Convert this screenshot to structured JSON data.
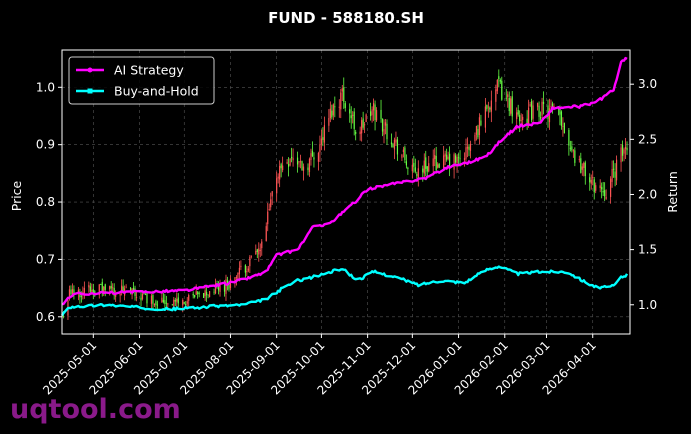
{
  "chart_data": {
    "type": "line",
    "title": "FUND - 588180.SH",
    "ylabel_left": "Price",
    "ylabel_right": "Return",
    "ylim_left": [
      0.57,
      1.065
    ],
    "ylim_right": [
      0.735,
      3.31
    ],
    "yticks_left": [
      "0.6",
      "0.7",
      "0.8",
      "0.9",
      "1.0"
    ],
    "yticks_right": [
      "1.0",
      "1.5",
      "2.0",
      "2.5",
      "3.0"
    ],
    "x_start": "2025-04-10",
    "x_end": "2026-04-26",
    "xticks": [
      "2025-05-01",
      "2025-06-01",
      "2025-07-01",
      "2025-08-01",
      "2025-09-01",
      "2025-10-01",
      "2025-11-01",
      "2025-12-01",
      "2026-01-01",
      "2026-02-01",
      "2026-03-01",
      "2026-04-01"
    ],
    "grid": true,
    "legend_position": "top-left",
    "series": [
      {
        "name": "AI Strategy",
        "axis": "right",
        "color": "#ff00ff",
        "marker": "circle",
        "points": [
          [
            "2025-04-10",
            1.0
          ],
          [
            "2025-04-14",
            1.07
          ],
          [
            "2025-04-20",
            1.1
          ],
          [
            "2025-05-15",
            1.11
          ],
          [
            "2025-06-10",
            1.12
          ],
          [
            "2025-07-01",
            1.13
          ],
          [
            "2025-07-15",
            1.16
          ],
          [
            "2025-08-01",
            1.2
          ],
          [
            "2025-08-15",
            1.25
          ],
          [
            "2025-08-25",
            1.3
          ],
          [
            "2025-09-01",
            1.45
          ],
          [
            "2025-09-15",
            1.5
          ],
          [
            "2025-09-25",
            1.7
          ],
          [
            "2025-10-08",
            1.75
          ],
          [
            "2025-10-25",
            1.95
          ],
          [
            "2025-11-01",
            2.05
          ],
          [
            "2025-11-20",
            2.1
          ],
          [
            "2025-12-10",
            2.15
          ],
          [
            "2025-12-25",
            2.25
          ],
          [
            "2026-01-10",
            2.3
          ],
          [
            "2026-01-20",
            2.35
          ],
          [
            "2026-01-30",
            2.5
          ],
          [
            "2026-02-10",
            2.62
          ],
          [
            "2026-02-25",
            2.65
          ],
          [
            "2026-03-05",
            2.78
          ],
          [
            "2026-03-25",
            2.8
          ],
          [
            "2026-04-05",
            2.85
          ],
          [
            "2026-04-15",
            2.95
          ],
          [
            "2026-04-20",
            3.2
          ],
          [
            "2026-04-26",
            3.25
          ]
        ]
      },
      {
        "name": "Buy-and-Hold",
        "axis": "right",
        "color": "#00ffff",
        "marker": "square",
        "points": [
          [
            "2025-04-10",
            0.9
          ],
          [
            "2025-04-15",
            0.98
          ],
          [
            "2025-05-10",
            1.0
          ],
          [
            "2025-06-05",
            0.97
          ],
          [
            "2025-06-20",
            0.96
          ],
          [
            "2025-07-05",
            0.97
          ],
          [
            "2025-07-25",
            0.99
          ],
          [
            "2025-08-10",
            1.0
          ],
          [
            "2025-08-25",
            1.05
          ],
          [
            "2025-09-05",
            1.15
          ],
          [
            "2025-09-15",
            1.22
          ],
          [
            "2025-09-25",
            1.25
          ],
          [
            "2025-10-08",
            1.3
          ],
          [
            "2025-10-15",
            1.33
          ],
          [
            "2025-10-25",
            1.22
          ],
          [
            "2025-11-05",
            1.3
          ],
          [
            "2025-11-20",
            1.25
          ],
          [
            "2025-12-05",
            1.18
          ],
          [
            "2025-12-20",
            1.22
          ],
          [
            "2026-01-05",
            1.2
          ],
          [
            "2026-01-20",
            1.32
          ],
          [
            "2026-01-28",
            1.35
          ],
          [
            "2026-02-10",
            1.28
          ],
          [
            "2026-02-25",
            1.3
          ],
          [
            "2026-03-15",
            1.3
          ],
          [
            "2026-03-25",
            1.22
          ],
          [
            "2026-04-05",
            1.15
          ],
          [
            "2026-04-15",
            1.17
          ],
          [
            "2026-04-20",
            1.25
          ],
          [
            "2026-04-26",
            1.28
          ]
        ]
      },
      {
        "name": "Price",
        "axis": "left",
        "type": "candlestick",
        "up_color": "#ff5555",
        "down_color": "#66ff44",
        "points": [
          [
            "2025-04-10",
            0.6
          ],
          [
            "2025-04-15",
            0.64
          ],
          [
            "2025-05-01",
            0.65
          ],
          [
            "2025-05-20",
            0.645
          ],
          [
            "2025-06-10",
            0.63
          ],
          [
            "2025-07-01",
            0.625
          ],
          [
            "2025-07-15",
            0.64
          ],
          [
            "2025-08-01",
            0.66
          ],
          [
            "2025-08-12",
            0.69
          ],
          [
            "2025-08-22",
            0.72
          ],
          [
            "2025-09-01",
            0.85
          ],
          [
            "2025-09-10",
            0.88
          ],
          [
            "2025-09-20",
            0.86
          ],
          [
            "2025-09-30",
            0.9
          ],
          [
            "2025-10-08",
            0.96
          ],
          [
            "2025-10-15",
            0.99
          ],
          [
            "2025-10-25",
            0.92
          ],
          [
            "2025-11-05",
            0.96
          ],
          [
            "2025-11-20",
            0.9
          ],
          [
            "2025-12-01",
            0.85
          ],
          [
            "2025-12-15",
            0.87
          ],
          [
            "2026-01-01",
            0.87
          ],
          [
            "2026-01-10",
            0.9
          ],
          [
            "2026-01-20",
            0.97
          ],
          [
            "2026-01-28",
            1.0
          ],
          [
            "2026-02-10",
            0.95
          ],
          [
            "2026-02-25",
            0.96
          ],
          [
            "2026-03-10",
            0.95
          ],
          [
            "2026-03-20",
            0.88
          ],
          [
            "2026-04-01",
            0.83
          ],
          [
            "2026-04-10",
            0.82
          ],
          [
            "2026-04-20",
            0.88
          ],
          [
            "2026-04-26",
            0.91
          ]
        ]
      }
    ]
  },
  "watermark": "uqtool.com"
}
